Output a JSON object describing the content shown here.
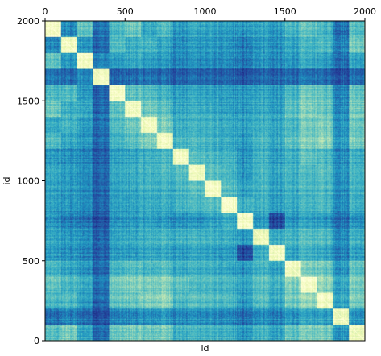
{
  "chart_data": {
    "type": "heatmap",
    "title": "",
    "xlabel": "id",
    "ylabel": "id",
    "xlim": [
      0,
      2000
    ],
    "ylim": [
      2000,
      0
    ],
    "x_ticks": [
      0,
      500,
      1000,
      1500,
      2000
    ],
    "y_ticks": [
      0,
      500,
      1000,
      1500,
      2000
    ],
    "x_tick_position": "top",
    "grid": false,
    "colormap": "YlGnBu",
    "color_range": [
      "#ffffd9",
      "#081d58"
    ],
    "clusters": [
      {
        "start": 0,
        "end": 100
      },
      {
        "start": 100,
        "end": 200
      },
      {
        "start": 200,
        "end": 300
      },
      {
        "start": 300,
        "end": 400
      },
      {
        "start": 400,
        "end": 500
      },
      {
        "start": 500,
        "end": 600
      },
      {
        "start": 600,
        "end": 700
      },
      {
        "start": 700,
        "end": 800
      },
      {
        "start": 800,
        "end": 900
      },
      {
        "start": 900,
        "end": 1000
      },
      {
        "start": 1000,
        "end": 1100
      },
      {
        "start": 1100,
        "end": 1200
      },
      {
        "start": 1200,
        "end": 1300
      },
      {
        "start": 1300,
        "end": 1400
      },
      {
        "start": 1400,
        "end": 1500
      },
      {
        "start": 1500,
        "end": 1600
      },
      {
        "start": 1600,
        "end": 1700
      },
      {
        "start": 1700,
        "end": 1800
      },
      {
        "start": 1800,
        "end": 1900
      },
      {
        "start": 1900,
        "end": 2000
      }
    ],
    "cluster_similarity": [
      [
        0.92,
        0.35,
        0.55,
        0.3,
        0.5,
        0.58,
        0.45,
        0.52,
        0.4,
        0.45,
        0.42,
        0.4,
        0.38,
        0.45,
        0.4,
        0.5,
        0.55,
        0.5,
        0.3,
        0.55
      ],
      [
        0.35,
        0.92,
        0.4,
        0.28,
        0.52,
        0.48,
        0.5,
        0.45,
        0.38,
        0.42,
        0.4,
        0.38,
        0.32,
        0.42,
        0.38,
        0.45,
        0.5,
        0.52,
        0.35,
        0.62
      ],
      [
        0.55,
        0.4,
        0.92,
        0.35,
        0.4,
        0.45,
        0.42,
        0.4,
        0.35,
        0.38,
        0.36,
        0.35,
        0.3,
        0.4,
        0.35,
        0.4,
        0.45,
        0.42,
        0.3,
        0.45
      ],
      [
        0.3,
        0.28,
        0.35,
        0.92,
        0.25,
        0.28,
        0.3,
        0.28,
        0.25,
        0.28,
        0.26,
        0.25,
        0.2,
        0.28,
        0.25,
        0.28,
        0.3,
        0.28,
        0.22,
        0.3
      ],
      [
        0.5,
        0.52,
        0.4,
        0.25,
        0.92,
        0.55,
        0.52,
        0.48,
        0.42,
        0.45,
        0.42,
        0.4,
        0.38,
        0.45,
        0.4,
        0.5,
        0.58,
        0.55,
        0.35,
        0.58
      ],
      [
        0.58,
        0.48,
        0.45,
        0.28,
        0.55,
        0.92,
        0.6,
        0.55,
        0.45,
        0.48,
        0.45,
        0.42,
        0.4,
        0.48,
        0.42,
        0.55,
        0.62,
        0.58,
        0.38,
        0.62
      ],
      [
        0.45,
        0.5,
        0.42,
        0.3,
        0.52,
        0.6,
        0.92,
        0.62,
        0.48,
        0.5,
        0.48,
        0.45,
        0.42,
        0.5,
        0.45,
        0.52,
        0.6,
        0.62,
        0.4,
        0.6
      ],
      [
        0.52,
        0.45,
        0.4,
        0.28,
        0.48,
        0.55,
        0.62,
        0.92,
        0.5,
        0.52,
        0.48,
        0.45,
        0.4,
        0.52,
        0.45,
        0.55,
        0.62,
        0.65,
        0.42,
        0.62
      ],
      [
        0.4,
        0.38,
        0.35,
        0.25,
        0.42,
        0.45,
        0.48,
        0.5,
        0.92,
        0.55,
        0.5,
        0.48,
        0.38,
        0.5,
        0.42,
        0.48,
        0.55,
        0.52,
        0.38,
        0.5
      ],
      [
        0.45,
        0.42,
        0.38,
        0.28,
        0.45,
        0.48,
        0.5,
        0.52,
        0.55,
        0.92,
        0.55,
        0.5,
        0.4,
        0.52,
        0.45,
        0.5,
        0.52,
        0.55,
        0.4,
        0.52
      ],
      [
        0.42,
        0.4,
        0.36,
        0.26,
        0.42,
        0.45,
        0.48,
        0.48,
        0.5,
        0.55,
        0.92,
        0.52,
        0.42,
        0.5,
        0.42,
        0.48,
        0.5,
        0.52,
        0.38,
        0.5
      ],
      [
        0.4,
        0.38,
        0.35,
        0.25,
        0.4,
        0.42,
        0.45,
        0.45,
        0.48,
        0.5,
        0.52,
        0.92,
        0.45,
        0.48,
        0.4,
        0.45,
        0.48,
        0.5,
        0.36,
        0.48
      ],
      [
        0.38,
        0.32,
        0.3,
        0.2,
        0.38,
        0.4,
        0.42,
        0.4,
        0.38,
        0.4,
        0.42,
        0.45,
        0.92,
        0.42,
        0.18,
        0.4,
        0.42,
        0.4,
        0.3,
        0.4
      ],
      [
        0.45,
        0.42,
        0.4,
        0.28,
        0.45,
        0.48,
        0.5,
        0.52,
        0.5,
        0.52,
        0.5,
        0.48,
        0.42,
        0.92,
        0.48,
        0.52,
        0.55,
        0.55,
        0.4,
        0.52
      ],
      [
        0.4,
        0.38,
        0.35,
        0.25,
        0.4,
        0.42,
        0.45,
        0.45,
        0.42,
        0.45,
        0.42,
        0.4,
        0.18,
        0.48,
        0.92,
        0.45,
        0.48,
        0.45,
        0.35,
        0.45
      ],
      [
        0.5,
        0.45,
        0.4,
        0.28,
        0.5,
        0.55,
        0.52,
        0.55,
        0.48,
        0.5,
        0.48,
        0.45,
        0.4,
        0.52,
        0.45,
        0.92,
        0.62,
        0.6,
        0.42,
        0.58
      ],
      [
        0.55,
        0.5,
        0.45,
        0.3,
        0.58,
        0.62,
        0.6,
        0.62,
        0.55,
        0.52,
        0.5,
        0.48,
        0.42,
        0.55,
        0.48,
        0.62,
        0.92,
        0.65,
        0.45,
        0.62
      ],
      [
        0.5,
        0.52,
        0.42,
        0.28,
        0.55,
        0.58,
        0.62,
        0.65,
        0.52,
        0.55,
        0.52,
        0.5,
        0.4,
        0.55,
        0.45,
        0.6,
        0.65,
        0.92,
        0.45,
        0.62
      ],
      [
        0.3,
        0.35,
        0.3,
        0.22,
        0.35,
        0.38,
        0.4,
        0.42,
        0.38,
        0.4,
        0.38,
        0.36,
        0.3,
        0.4,
        0.35,
        0.42,
        0.45,
        0.45,
        0.92,
        0.42
      ],
      [
        0.55,
        0.62,
        0.45,
        0.3,
        0.58,
        0.62,
        0.6,
        0.62,
        0.5,
        0.52,
        0.5,
        0.48,
        0.4,
        0.52,
        0.45,
        0.58,
        0.62,
        0.62,
        0.42,
        0.92
      ]
    ]
  }
}
